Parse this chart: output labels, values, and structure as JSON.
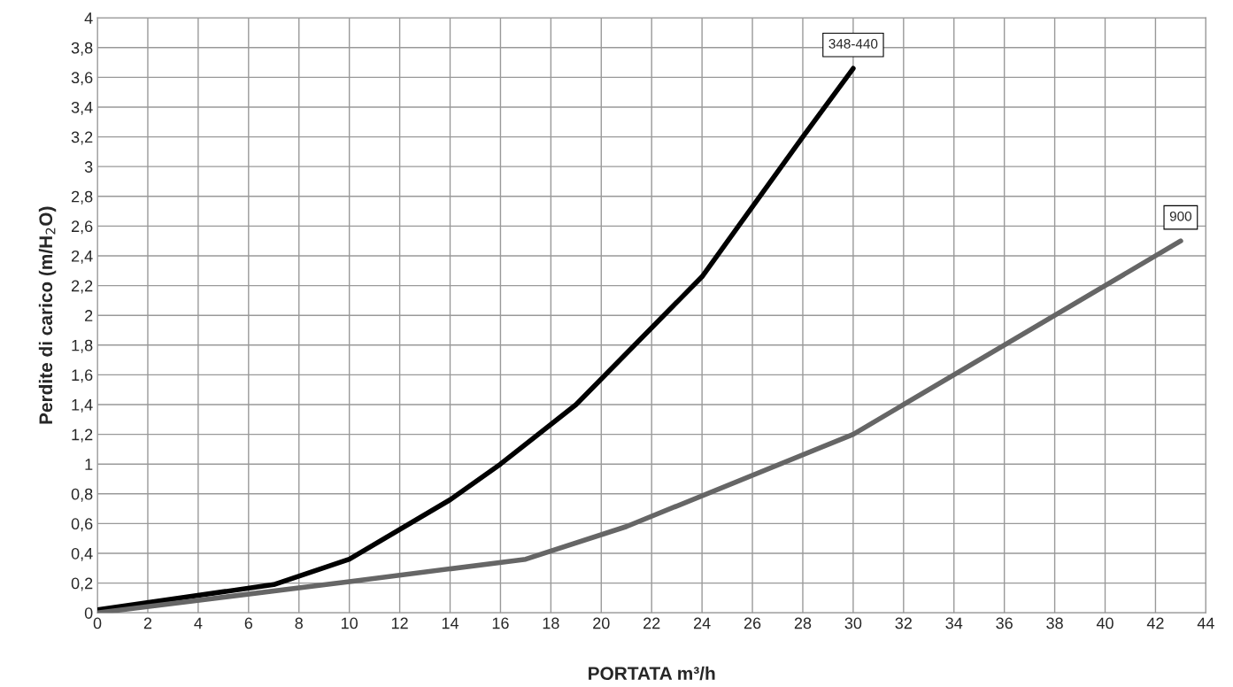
{
  "chart_data": {
    "type": "line",
    "xlabel": "PORTATA m³/h",
    "ylabel": "Perdite di carico (m/H$_{2}$O)",
    "xlim": [
      0,
      44
    ],
    "xticks": [
      0,
      2,
      4,
      6,
      8,
      10,
      12,
      14,
      16,
      18,
      20,
      22,
      24,
      26,
      28,
      30,
      32,
      34,
      36,
      38,
      40,
      42,
      44
    ],
    "ylim": [
      0,
      4
    ],
    "yticks": [
      0,
      {
        "value": 0.2,
        "label": "0,2"
      },
      {
        "value": 0.4,
        "label": "0,4"
      },
      {
        "value": 0.6,
        "label": "0,6"
      },
      {
        "value": 0.8,
        "label": "0,8"
      },
      1,
      {
        "value": 1.2,
        "label": "1,2"
      },
      {
        "value": 1.4,
        "label": "1,4"
      },
      {
        "value": 1.6,
        "label": "1,6"
      },
      {
        "value": 1.8,
        "label": "1,8"
      },
      2,
      {
        "value": 2.2,
        "label": "2,2"
      },
      {
        "value": 2.4,
        "label": "2,4"
      },
      {
        "value": 2.6,
        "label": "2,6"
      },
      {
        "value": 2.8,
        "label": "2,8"
      },
      3,
      {
        "value": 3.2,
        "label": "3,2"
      },
      {
        "value": 3.4,
        "label": "3,4"
      },
      {
        "value": 3.6,
        "label": "3,6"
      },
      {
        "value": 3.8,
        "label": "3,8"
      },
      4
    ],
    "grid": true,
    "legend": false,
    "marker": "none",
    "line_style": "solid",
    "series": [
      {
        "name": "348-440",
        "color": "#000000",
        "x": [
          0,
          7,
          10,
          14,
          16,
          19,
          24,
          28,
          30
        ],
        "values": [
          0.02,
          0.19,
          0.36,
          0.76,
          1.0,
          1.4,
          2.26,
          3.2,
          3.66
        ]
      },
      {
        "name": "900",
        "color": "#666666",
        "x": [
          0,
          10,
          17,
          21,
          30,
          43
        ],
        "values": [
          0,
          0.21,
          0.36,
          0.58,
          1.2,
          2.5
        ]
      }
    ]
  }
}
